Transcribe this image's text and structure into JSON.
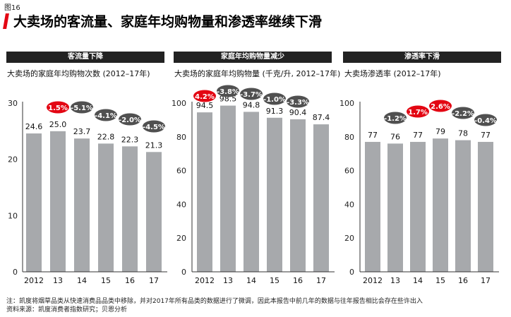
{
  "figure": {
    "label": "图16",
    "title": "大卖场的客流量、家庭年均购物量和渗透率继续下滑"
  },
  "colors": {
    "bar": "#a7a9ac",
    "negative_bubble": "#505050",
    "positive_bubble": "#e30613",
    "accent": "#e30613"
  },
  "chart_data": [
    {
      "type": "bar",
      "header": "客流量下降",
      "title": "大卖场的家庭年均购物次数 (2012–17年)",
      "categories": [
        "2012",
        "13",
        "14",
        "15",
        "16",
        "17"
      ],
      "values": [
        24.6,
        25.0,
        23.7,
        22.8,
        22.3,
        21.3
      ],
      "value_labels": [
        "24.6",
        "25.0",
        "23.7",
        "22.8",
        "22.3",
        "21.3"
      ],
      "changes": [
        "",
        "1.5%",
        "-5.1%",
        "-4.1%",
        "-2.0%",
        "-4.5%"
      ],
      "ylim": [
        0,
        30
      ],
      "yticks": [
        0,
        10,
        20,
        30
      ]
    },
    {
      "type": "bar",
      "header": "家庭年均购物量减少",
      "title": "大卖场的家庭年均购物量 (千克/升, 2012–17年)",
      "categories": [
        "2012",
        "13",
        "14",
        "15",
        "16",
        "17"
      ],
      "values": [
        94.5,
        98.5,
        94.8,
        91.3,
        90.4,
        87.4
      ],
      "value_labels": [
        "94.5",
        "98.5",
        "94.8",
        "91.3",
        "90.4",
        "87.4"
      ],
      "changes": [
        "4.2%",
        "-3.8%",
        "-3.7%",
        "-1.0%",
        "-3.3%",
        ""
      ],
      "ylim": [
        0,
        100
      ],
      "yticks": [
        0,
        20,
        40,
        60,
        80,
        100
      ]
    },
    {
      "type": "bar",
      "header": "渗透率下滑",
      "title": "大卖场渗透率 (2012–17年)",
      "categories": [
        "2012",
        "13",
        "14",
        "15",
        "16",
        "17"
      ],
      "values": [
        77,
        76,
        77,
        79,
        78,
        77
      ],
      "value_labels": [
        "77",
        "76",
        "77",
        "79",
        "78",
        "77"
      ],
      "changes": [
        "",
        "-1.2%",
        "1.7%",
        "2.6%",
        "-2.2%",
        "-0.4%"
      ],
      "ylim": [
        0,
        100
      ],
      "yticks": [
        0,
        20,
        40,
        60,
        80,
        100
      ]
    }
  ],
  "footer": {
    "note": "注：凯度将烟草品类从快速消费品品类中移除，并对2017年所有品类的数据进行了微调，因此本报告中前几年的数据与往年报告相比会存在些许出入",
    "source": "资料来源：凯度消费者指数研究；贝恩分析"
  }
}
